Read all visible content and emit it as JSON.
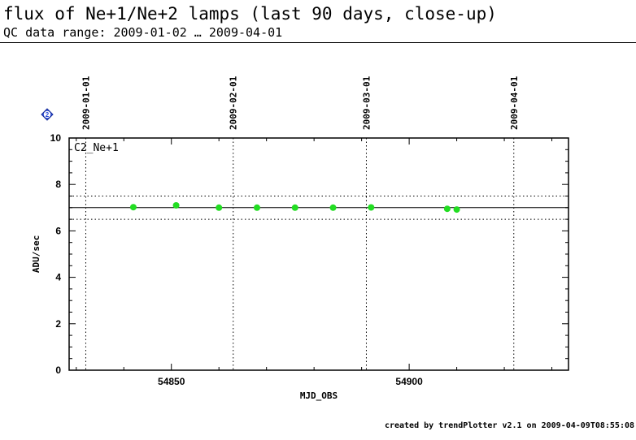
{
  "header": {
    "title": "flux of Ne+1/Ne+2 lamps (last 90 days, close-up)",
    "subtitle": "QC data range: 2009-01-02 … 2009-04-01"
  },
  "footer": {
    "text": "created by trendPlotter v2.1 on 2009-04-09T08:55:08"
  },
  "badge": {
    "label": "2",
    "icon": "diamond-badge-icon",
    "color": "#2a4bd7"
  },
  "chart_data": {
    "type": "scatter",
    "title": "",
    "xlabel": "MJD_OBS",
    "ylabel": "ADU/sec",
    "xlim": [
      54828.5,
      54933.5
    ],
    "ylim": [
      0,
      10
    ],
    "x_ticks": [
      54850,
      54900
    ],
    "y_ticks": [
      0,
      2,
      4,
      6,
      8,
      10
    ],
    "panel_label": "C2_Ne+1",
    "grid": false,
    "date_markers": [
      {
        "mjd": 54832,
        "label": "2009-01-01"
      },
      {
        "mjd": 54863,
        "label": "2009-02-01"
      },
      {
        "mjd": 54891,
        "label": "2009-03-01"
      },
      {
        "mjd": 54922,
        "label": "2009-04-01"
      }
    ],
    "reference_line": 7.0,
    "tolerance_lines": [
      6.5,
      7.5
    ],
    "series": [
      {
        "color": "#22dd22",
        "x": [
          54842,
          54851,
          54860,
          54868,
          54876,
          54884,
          54892,
          54908,
          54910
        ],
        "y": [
          7.02,
          7.1,
          7.0,
          7.0,
          7.0,
          7.0,
          7.01,
          6.95,
          6.92
        ]
      }
    ]
  }
}
